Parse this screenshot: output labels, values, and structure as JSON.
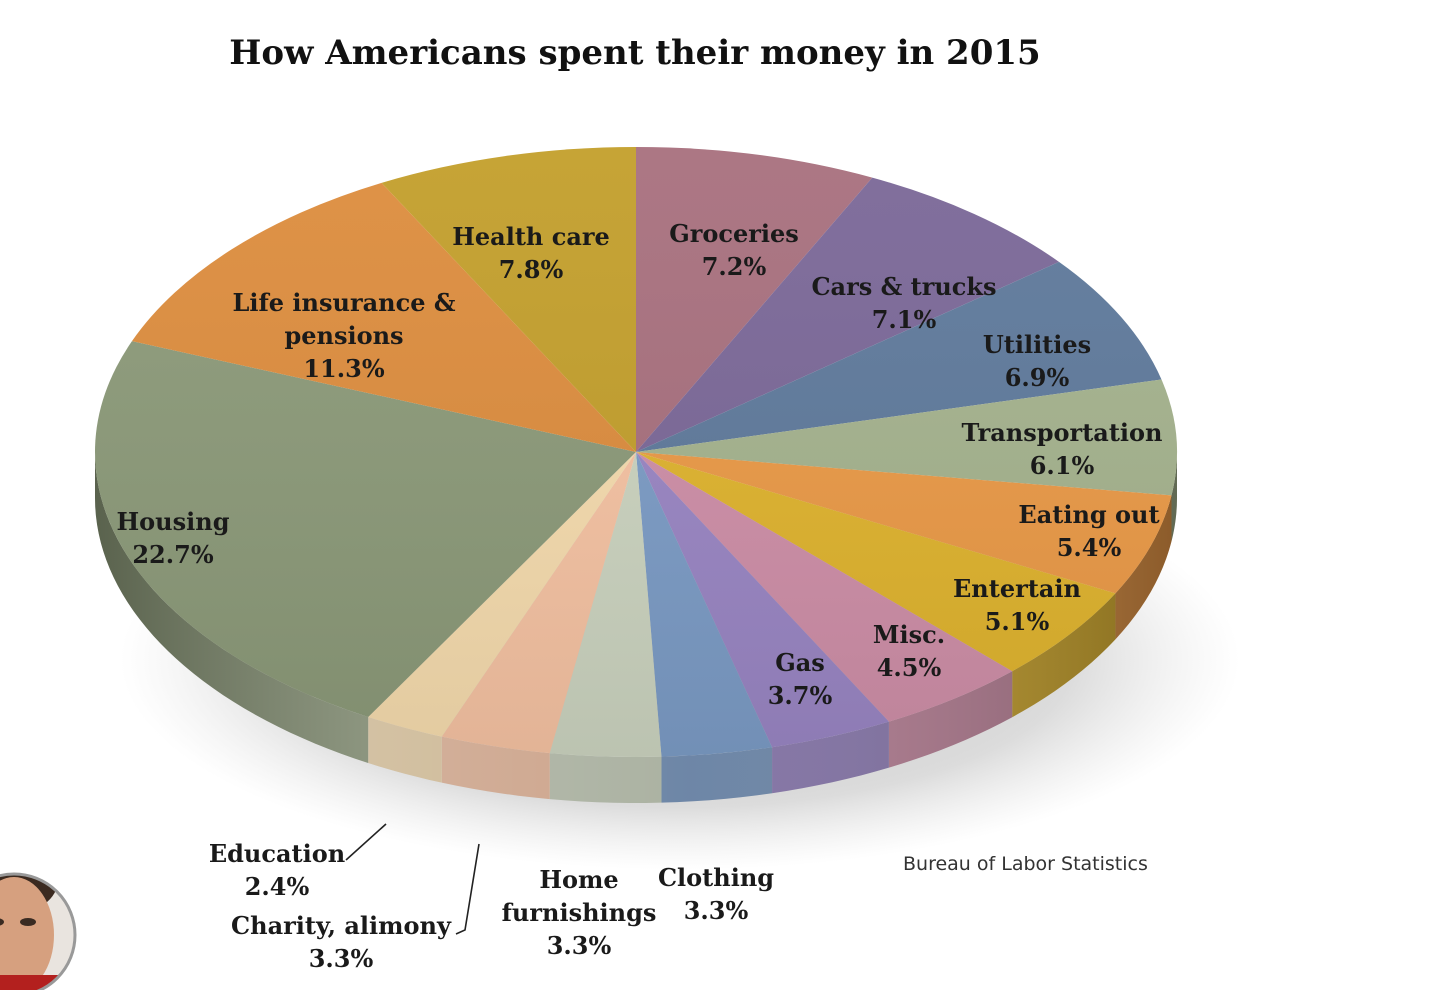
{
  "chart_data": {
    "type": "pie",
    "title": "How Americans spent their money in 2015",
    "source": "Bureau of Labor Statistics",
    "unit": "%",
    "slices": [
      {
        "label": "Groceries",
        "value": 7.2,
        "value_label": "7.2%",
        "color": "#a8707e"
      },
      {
        "label": "Cars & trucks",
        "value": 7.1,
        "value_label": "7.1%",
        "color": "#7b6898"
      },
      {
        "label": "Utilities",
        "value": 6.9,
        "value_label": "6.9%",
        "color": "#5f7a9c"
      },
      {
        "label": "Transportation",
        "value": 6.1,
        "value_label": "6.1%",
        "color": "#a5b38e"
      },
      {
        "label": "Eating out",
        "value": 5.4,
        "value_label": "5.4%",
        "color": "#eb9a47"
      },
      {
        "label": "Entertain",
        "value": 5.1,
        "value_label": "5.1%",
        "color": "#e0b42e"
      },
      {
        "label": "Misc.",
        "value": 4.5,
        "value_label": "4.5%",
        "color": "#cf8fa8"
      },
      {
        "label": "Gas",
        "value": 3.7,
        "value_label": "3.7%",
        "color": "#9a86c4"
      },
      {
        "label": "Clothing",
        "value": 3.3,
        "value_label": "3.3%",
        "color": "#7c9cc6"
      },
      {
        "label": "Home furnishings",
        "value": 3.3,
        "value_label": "3.3%",
        "color": "#ccd4c0"
      },
      {
        "label": "Charity, alimony",
        "value": 3.3,
        "value_label": "3.3%",
        "color": "#f6c3a3"
      },
      {
        "label": "Education",
        "value": 2.4,
        "value_label": "2.4%",
        "color": "#f6dcae"
      },
      {
        "label": "Housing",
        "value": 22.7,
        "value_label": "22.7%",
        "color": "#8c9a79"
      },
      {
        "label": "Life insurance & pensions",
        "value": 11.3,
        "value_label": "11.3%",
        "color": "#dd8d3e"
      },
      {
        "label": "Health care",
        "value": 7.8,
        "value_label": "7.8%",
        "color": "#c39f2c"
      }
    ]
  }
}
